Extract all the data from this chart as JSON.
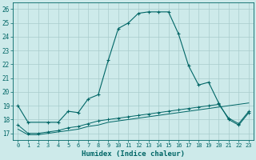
{
  "title": "",
  "xlabel": "Humidex (Indice chaleur)",
  "bg_color": "#cdeaea",
  "grid_color": "#a8cccc",
  "line_color": "#006666",
  "xlim": [
    -0.5,
    23.5
  ],
  "ylim": [
    16.5,
    26.5
  ],
  "yticks": [
    17,
    18,
    19,
    20,
    21,
    22,
    23,
    24,
    25,
    26
  ],
  "xticks": [
    0,
    1,
    2,
    3,
    4,
    5,
    6,
    7,
    8,
    9,
    10,
    11,
    12,
    13,
    14,
    15,
    16,
    17,
    18,
    19,
    20,
    21,
    22,
    23
  ],
  "line1_x": [
    0,
    1,
    3,
    4,
    5,
    6,
    7,
    8,
    9,
    10,
    11,
    12,
    13,
    14,
    15,
    16,
    17,
    18,
    19,
    20,
    21,
    22,
    23
  ],
  "line1_y": [
    19.0,
    17.8,
    17.8,
    17.8,
    18.6,
    18.5,
    19.5,
    19.8,
    22.3,
    24.6,
    25.0,
    25.7,
    25.8,
    25.8,
    25.8,
    24.2,
    21.9,
    20.5,
    20.7,
    19.2,
    18.0,
    17.6,
    18.5
  ],
  "line2_x": [
    0,
    1,
    2,
    3,
    4,
    5,
    6,
    7,
    8,
    9,
    10,
    11,
    12,
    13,
    14,
    15,
    16,
    17,
    18,
    19,
    20,
    21,
    22,
    23
  ],
  "line2_y": [
    17.6,
    17.0,
    17.0,
    17.1,
    17.2,
    17.4,
    17.5,
    17.7,
    17.9,
    18.0,
    18.1,
    18.2,
    18.3,
    18.4,
    18.5,
    18.6,
    18.7,
    18.8,
    18.9,
    19.0,
    19.1,
    18.1,
    17.7,
    18.6
  ],
  "line3_x": [
    0,
    1,
    2,
    3,
    4,
    5,
    6,
    7,
    8,
    9,
    10,
    11,
    12,
    13,
    14,
    15,
    16,
    17,
    18,
    19,
    20,
    21,
    22,
    23
  ],
  "line3_y": [
    17.3,
    16.9,
    16.9,
    17.0,
    17.1,
    17.2,
    17.3,
    17.5,
    17.6,
    17.8,
    17.9,
    18.0,
    18.1,
    18.2,
    18.3,
    18.4,
    18.5,
    18.6,
    18.7,
    18.8,
    18.9,
    19.0,
    19.1,
    19.2
  ]
}
